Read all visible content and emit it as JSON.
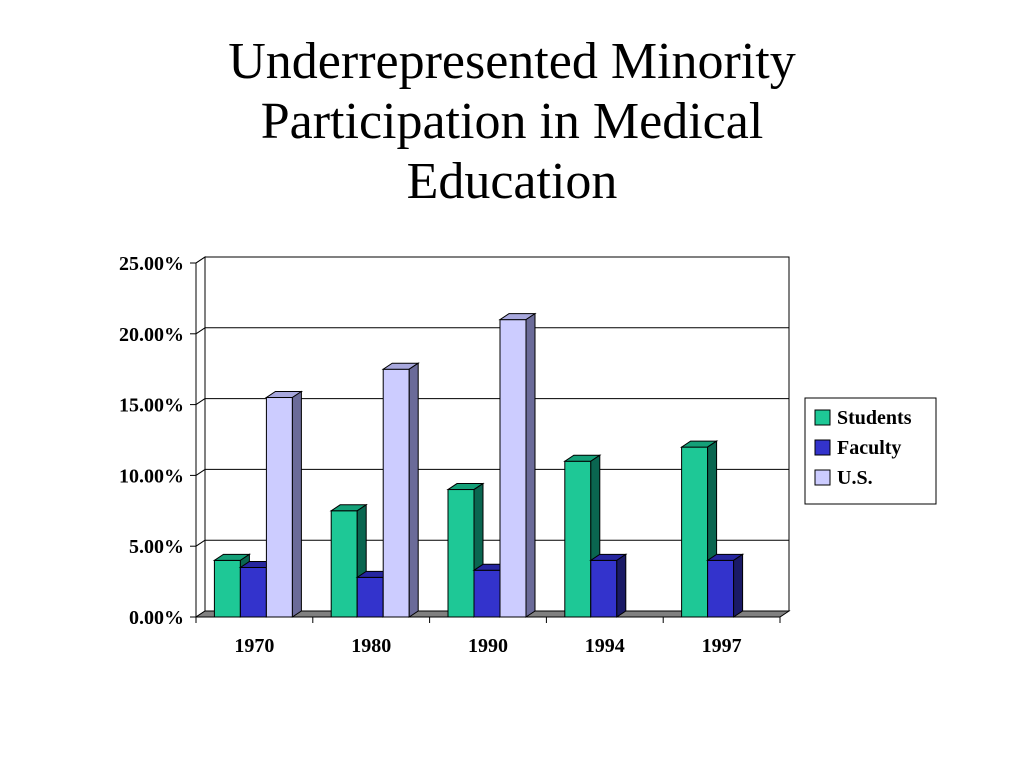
{
  "title_lines": [
    "Underrepresented Minority",
    "Participation in Medical",
    "Education"
  ],
  "chart_data": {
    "type": "bar",
    "title": "Underrepresented Minority Participation in Medical Education",
    "categories": [
      "1970",
      "1980",
      "1990",
      "1994",
      "1997"
    ],
    "series": [
      {
        "name": "Students",
        "values": [
          4.0,
          7.5,
          9.0,
          11.0,
          12.0
        ],
        "color": "#1ec896",
        "side": "#0a6650",
        "top": "#14a078"
      },
      {
        "name": "Faculty",
        "values": [
          3.5,
          2.8,
          3.3,
          4.0,
          4.0
        ],
        "color": "#3333cc",
        "side": "#1a1a66",
        "top": "#2626a0"
      },
      {
        "name": "U.S.",
        "values": [
          15.5,
          17.5,
          21.0,
          null,
          null
        ],
        "color": "#ccccff",
        "side": "#6b6b99",
        "top": "#a8a8dd"
      }
    ],
    "ylim": [
      0,
      25
    ],
    "yticks": [
      "0.00%",
      "5.00%",
      "10.00%",
      "15.00%",
      "20.00%",
      "25.00%"
    ],
    "ytick_values": [
      0,
      5,
      10,
      15,
      20,
      25
    ],
    "grid": true,
    "legend_position": "right"
  }
}
